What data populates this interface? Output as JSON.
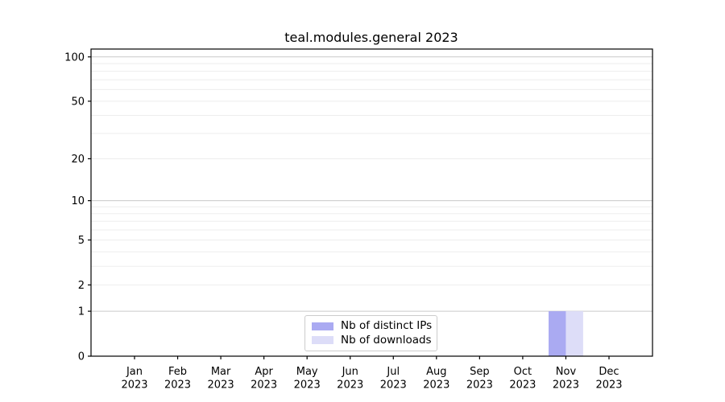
{
  "colors": {
    "background": "#ffffff",
    "axis": "#000000",
    "text": "#000000",
    "grid_major": "#c9c9c9",
    "grid_minor": "#ededed",
    "legend_border": "#cccccc"
  },
  "chart_data": {
    "type": "bar",
    "title": "teal.modules.general 2023",
    "categories": [
      "Jan 2023",
      "Feb 2023",
      "Mar 2023",
      "Apr 2023",
      "May 2023",
      "Jun 2023",
      "Jul 2023",
      "Aug 2023",
      "Sep 2023",
      "Oct 2023",
      "Nov 2023",
      "Dec 2023"
    ],
    "series": [
      {
        "name": "Nb of distinct IPs",
        "color": "#aaaaf2",
        "values": [
          0,
          0,
          0,
          0,
          0,
          0,
          0,
          0,
          0,
          0,
          1,
          0
        ]
      },
      {
        "name": "Nb of downloads",
        "color": "#ddddf8",
        "values": [
          0,
          0,
          0,
          0,
          0,
          0,
          0,
          0,
          0,
          0,
          1,
          0
        ]
      }
    ],
    "xlabel": "",
    "ylabel": "",
    "yticks": [
      0,
      1,
      2,
      5,
      10,
      20,
      50,
      100
    ],
    "scale": "log1p",
    "ylim": [
      0,
      113
    ],
    "grid": true,
    "legend_position": "lower center"
  }
}
